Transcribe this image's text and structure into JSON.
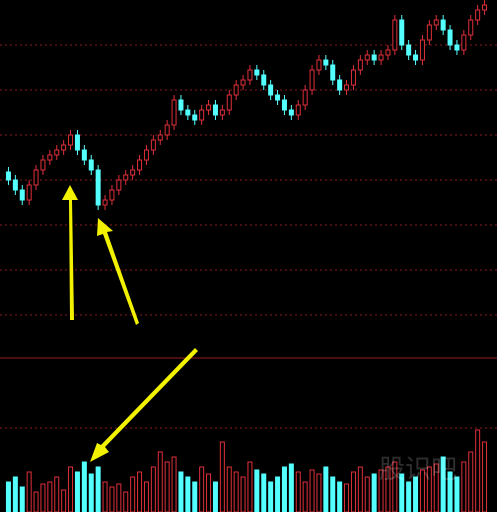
{
  "watermark": "股识吧",
  "chart_data": {
    "type": "candlestick",
    "open": [
      178,
      170,
      160,
      150,
      165,
      180,
      190,
      195,
      200,
      205,
      215,
      200,
      190,
      180,
      145,
      150,
      160,
      170,
      175,
      180,
      190,
      200,
      210,
      215,
      225,
      250,
      240,
      235,
      230,
      240,
      245,
      235,
      240,
      255,
      265,
      270,
      280,
      275,
      265,
      255,
      250,
      240,
      235,
      245,
      260,
      280,
      290,
      285,
      270,
      260,
      265,
      280,
      290,
      295,
      290,
      295,
      300,
      330,
      305,
      295,
      290,
      310,
      325,
      330,
      320,
      305,
      300,
      315,
      330,
      340
    ],
    "high": [
      183,
      175,
      165,
      170,
      185,
      195,
      200,
      205,
      210,
      220,
      220,
      205,
      195,
      185,
      155,
      165,
      175,
      180,
      185,
      195,
      205,
      215,
      220,
      230,
      255,
      255,
      245,
      240,
      245,
      250,
      250,
      245,
      260,
      270,
      275,
      285,
      285,
      280,
      270,
      260,
      255,
      245,
      250,
      265,
      285,
      295,
      295,
      290,
      275,
      270,
      285,
      295,
      300,
      300,
      300,
      305,
      335,
      335,
      310,
      300,
      315,
      330,
      335,
      335,
      325,
      310,
      320,
      335,
      345,
      350
    ],
    "low": [
      165,
      155,
      145,
      145,
      160,
      175,
      185,
      190,
      195,
      200,
      195,
      185,
      175,
      140,
      140,
      145,
      155,
      165,
      170,
      175,
      185,
      195,
      205,
      210,
      220,
      235,
      230,
      225,
      225,
      235,
      230,
      230,
      235,
      250,
      260,
      265,
      270,
      260,
      250,
      245,
      235,
      230,
      230,
      240,
      255,
      275,
      280,
      265,
      255,
      255,
      260,
      275,
      285,
      285,
      285,
      290,
      295,
      300,
      290,
      285,
      285,
      305,
      320,
      315,
      300,
      295,
      295,
      310,
      325,
      335
    ],
    "close": [
      170,
      160,
      150,
      165,
      180,
      190,
      195,
      200,
      205,
      215,
      200,
      190,
      180,
      145,
      150,
      160,
      170,
      175,
      180,
      190,
      200,
      210,
      215,
      225,
      250,
      240,
      235,
      230,
      240,
      245,
      235,
      240,
      255,
      265,
      270,
      280,
      275,
      265,
      255,
      250,
      240,
      235,
      245,
      260,
      280,
      290,
      285,
      270,
      260,
      265,
      280,
      290,
      295,
      290,
      295,
      300,
      330,
      305,
      295,
      290,
      310,
      325,
      330,
      320,
      305,
      300,
      315,
      330,
      340,
      345
    ],
    "volume": [
      30,
      35,
      25,
      40,
      20,
      28,
      30,
      35,
      22,
      45,
      40,
      50,
      38,
      45,
      30,
      25,
      28,
      20,
      35,
      40,
      30,
      45,
      60,
      50,
      55,
      40,
      35,
      30,
      45,
      38,
      30,
      70,
      45,
      40,
      35,
      50,
      42,
      38,
      30,
      35,
      45,
      48,
      40,
      30,
      42,
      38,
      45,
      35,
      30,
      28,
      40,
      45,
      35,
      38,
      42,
      45,
      50,
      38,
      30,
      35,
      42,
      45,
      48,
      55,
      40,
      35,
      50,
      60,
      82,
      70
    ],
    "ylim": [
      0,
      350
    ],
    "gridlines": [
      35,
      80,
      125,
      170,
      215,
      260,
      305
    ],
    "volume_ylim": [
      0,
      100
    ],
    "volume_gridlines": [
      84
    ],
    "up_color": "#e0303a",
    "down_color": "#54ffff",
    "grid_color": "#8a1a1a"
  }
}
